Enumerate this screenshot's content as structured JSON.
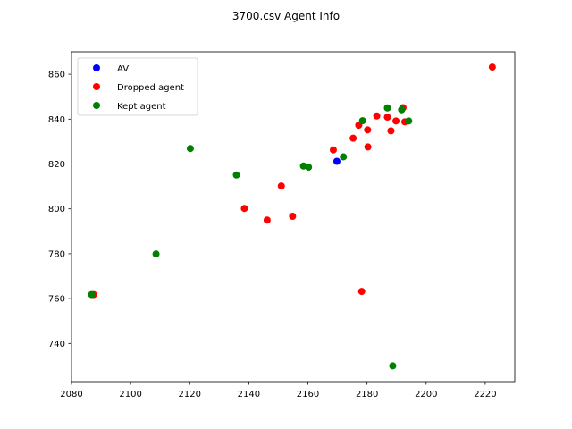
{
  "chart_data": {
    "type": "scatter",
    "title": "3700.csv Agent Info",
    "xlabel": "",
    "ylabel": "",
    "xlim": [
      2080,
      2230
    ],
    "ylim": [
      723,
      870
    ],
    "xticks": [
      2080,
      2100,
      2120,
      2140,
      2160,
      2180,
      2200,
      2220
    ],
    "yticks": [
      740,
      760,
      780,
      800,
      820,
      840,
      860
    ],
    "legend_position": "top-left",
    "grid": false,
    "series": [
      {
        "name": "AV",
        "color": "#0000ff",
        "points": [
          [
            2169.8,
            821.2
          ]
        ]
      },
      {
        "name": "Dropped agent",
        "color": "#ff0000",
        "points": [
          [
            2087.5,
            761.8
          ],
          [
            2138.5,
            800.2
          ],
          [
            2146.2,
            795.0
          ],
          [
            2151.0,
            810.2
          ],
          [
            2154.8,
            796.7
          ],
          [
            2168.6,
            826.3
          ],
          [
            2175.3,
            831.5
          ],
          [
            2177.2,
            837.3
          ],
          [
            2178.2,
            763.2
          ],
          [
            2180.2,
            835.2
          ],
          [
            2180.3,
            827.6
          ],
          [
            2183.3,
            841.4
          ],
          [
            2186.9,
            840.9
          ],
          [
            2188.1,
            834.8
          ],
          [
            2189.8,
            839.2
          ],
          [
            2192.2,
            845.1
          ],
          [
            2192.8,
            838.8
          ],
          [
            2222.4,
            863.2
          ]
        ]
      },
      {
        "name": "Kept agent",
        "color": "#008000",
        "points": [
          [
            2086.8,
            761.8
          ],
          [
            2108.6,
            779.9
          ],
          [
            2120.2,
            826.9
          ],
          [
            2135.8,
            815.1
          ],
          [
            2158.5,
            819.1
          ],
          [
            2160.2,
            818.6
          ],
          [
            2172.0,
            823.2
          ],
          [
            2178.5,
            839.3
          ],
          [
            2186.9,
            845.0
          ],
          [
            2188.7,
            730.0
          ],
          [
            2191.7,
            844.2
          ],
          [
            2194.1,
            839.2
          ]
        ]
      }
    ]
  }
}
